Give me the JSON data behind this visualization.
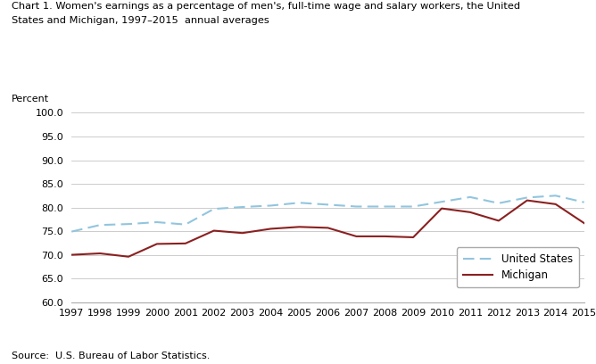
{
  "title_line1": "Chart 1. Women's earnings as a percentage of men's, full-time wage and salary workers, the United",
  "title_line2": "States and Michigan, 1997–2015  annual averages",
  "ylabel": "Percent",
  "source": "Source:  U.S. Bureau of Labor Statistics.",
  "years": [
    1997,
    1998,
    1999,
    2000,
    2001,
    2002,
    2003,
    2004,
    2005,
    2006,
    2007,
    2008,
    2009,
    2010,
    2011,
    2012,
    2013,
    2014,
    2015
  ],
  "us_data": [
    74.9,
    76.3,
    76.5,
    76.9,
    76.4,
    79.7,
    80.1,
    80.4,
    81.0,
    80.6,
    80.2,
    80.2,
    80.2,
    81.2,
    82.2,
    80.9,
    82.1,
    82.5,
    81.1
  ],
  "mi_data": [
    70.0,
    70.3,
    69.6,
    72.3,
    72.4,
    75.1,
    74.6,
    75.5,
    75.9,
    75.7,
    73.9,
    73.9,
    73.7,
    79.8,
    79.0,
    77.2,
    81.5,
    80.7,
    76.7
  ],
  "us_color": "#92C5DE",
  "mi_color": "#8B2020",
  "ylim": [
    60.0,
    100.0
  ],
  "yticks": [
    60.0,
    65.0,
    70.0,
    75.0,
    80.0,
    85.0,
    90.0,
    95.0,
    100.0
  ],
  "legend_labels": [
    "United States",
    "Michigan"
  ],
  "background_color": "#ffffff",
  "grid_color": "#cccccc"
}
